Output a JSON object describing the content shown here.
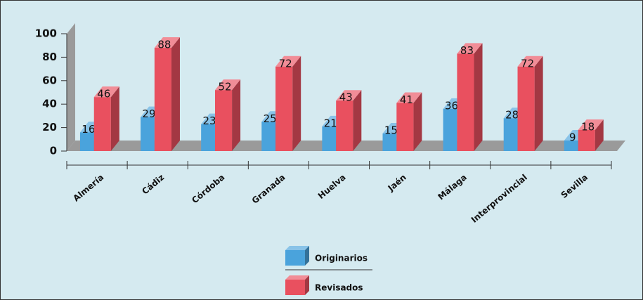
{
  "chart_data": {
    "type": "bar",
    "categories": [
      "Almería",
      "Cádiz",
      "Córdoba",
      "Granada",
      "Huelva",
      "Jaén",
      "Málaga",
      "Interprovincial",
      "Sevilla"
    ],
    "series": [
      {
        "name": "Originarios",
        "color": "#4aa3dc",
        "values": [
          16,
          29,
          23,
          25,
          21,
          15,
          36,
          28,
          9
        ]
      },
      {
        "name": "Revisados",
        "color": "#e9505f",
        "values": [
          46,
          88,
          52,
          72,
          43,
          41,
          83,
          72,
          18
        ]
      }
    ],
    "ylim": [
      0,
      100
    ],
    "yticks": [
      0,
      20,
      40,
      60,
      80,
      100
    ]
  }
}
